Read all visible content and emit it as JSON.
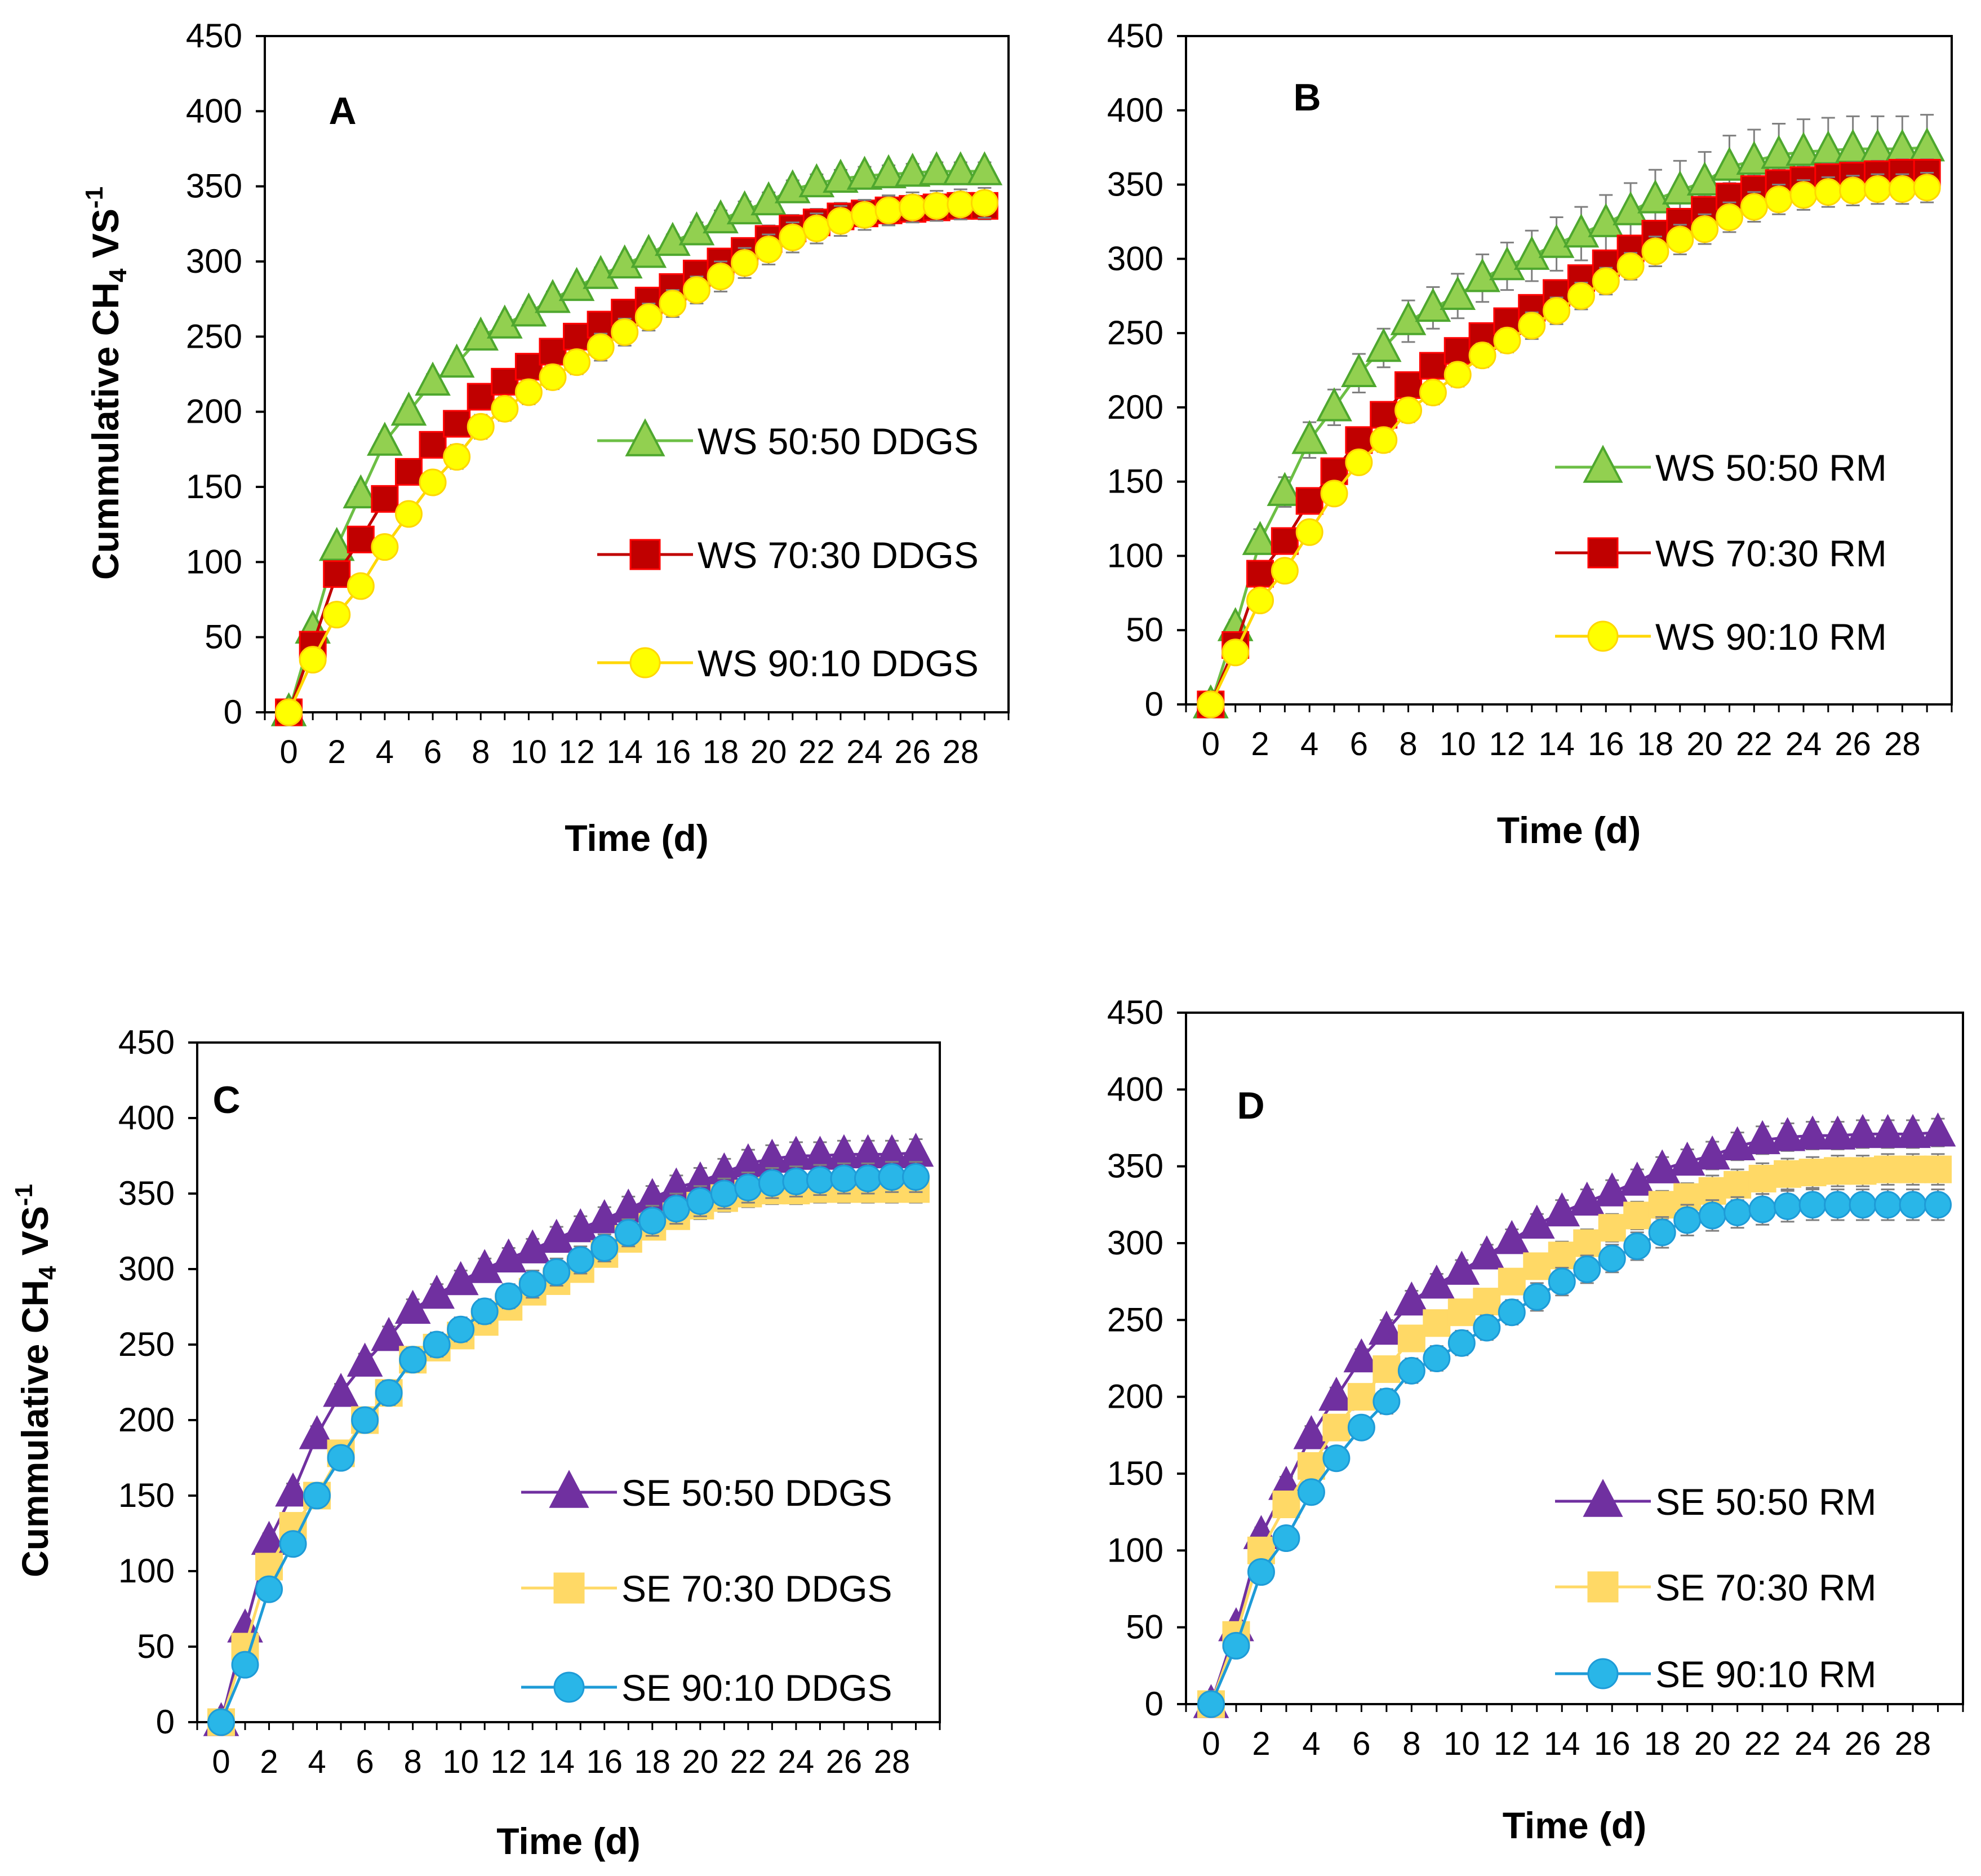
{
  "figure": {
    "x_axis_title": "Time (d)",
    "y_axis_title_prefix": "Cummulative CH",
    "y_axis_title_sub": "4",
    "y_axis_title_mid": " VS",
    "y_axis_title_sup": "-1"
  },
  "chart_data": [
    {
      "type": "line",
      "panel": "A",
      "xlabel": "Time (d)",
      "ylabel": "Cummulative CH4 VS-1",
      "ylim": [
        0,
        450
      ],
      "xlim": [
        -1,
        30
      ],
      "yticks": [
        0,
        50,
        100,
        150,
        200,
        250,
        300,
        350,
        400,
        450
      ],
      "xticks": [
        0,
        2,
        4,
        6,
        8,
        10,
        12,
        14,
        16,
        18,
        20,
        22,
        24,
        26,
        28
      ],
      "grid": false,
      "legend_position": "center-right",
      "x": [
        0,
        1,
        2,
        3,
        4,
        5,
        6,
        7,
        8,
        9,
        10,
        11,
        12,
        13,
        14,
        15,
        16,
        17,
        18,
        19,
        20,
        21,
        22,
        23,
        24,
        25,
        26,
        27,
        28,
        29
      ],
      "series": [
        {
          "name": "WS 50:50 DDGS",
          "marker": "triangle",
          "color": "#92d050",
          "edge": "#4ea72e",
          "line": "#6cbf45",
          "values": [
            0,
            55,
            110,
            145,
            180,
            200,
            220,
            232,
            250,
            258,
            266,
            275,
            283,
            291,
            298,
            305,
            313,
            320,
            328,
            334,
            340,
            348,
            352,
            355,
            357,
            358,
            359,
            360,
            360,
            360
          ],
          "errors": [
            0,
            4,
            4,
            5,
            5,
            5,
            5,
            5,
            5,
            5,
            5,
            5,
            5,
            5,
            5,
            5,
            5,
            6,
            6,
            6,
            6,
            6,
            6,
            6,
            6,
            6,
            6,
            6,
            6,
            6
          ]
        },
        {
          "name": "WS 70:30 DDGS",
          "marker": "square",
          "color": "#c00000",
          "edge": "#ff0000",
          "line": "#c00000",
          "values": [
            0,
            45,
            92,
            115,
            142,
            160,
            178,
            192,
            210,
            220,
            230,
            240,
            250,
            258,
            266,
            274,
            283,
            292,
            300,
            307,
            315,
            322,
            326,
            330,
            332,
            334,
            335,
            336,
            337,
            337
          ],
          "errors": [
            0,
            4,
            5,
            6,
            6,
            6,
            6,
            7,
            7,
            7,
            7,
            7,
            7,
            7,
            8,
            8,
            8,
            8,
            8,
            8,
            9,
            9,
            9,
            9,
            9,
            9,
            9,
            9,
            9,
            9
          ]
        },
        {
          "name": "WS 90:10 DDGS",
          "marker": "circle",
          "color": "#ffff00",
          "edge": "#ffd700",
          "line": "#ffd700",
          "values": [
            0,
            35,
            65,
            84,
            110,
            132,
            153,
            170,
            190,
            202,
            213,
            223,
            233,
            243,
            253,
            263,
            272,
            281,
            290,
            299,
            308,
            316,
            322,
            327,
            331,
            334,
            336,
            337,
            338,
            339
          ],
          "errors": [
            0,
            4,
            5,
            6,
            7,
            7,
            7,
            8,
            8,
            8,
            8,
            8,
            8,
            9,
            9,
            9,
            9,
            9,
            10,
            10,
            10,
            10,
            10,
            10,
            10,
            10,
            10,
            10,
            10,
            10
          ]
        }
      ]
    },
    {
      "type": "line",
      "panel": "B",
      "xlabel": "Time (d)",
      "ylabel": "",
      "ylim": [
        0,
        450
      ],
      "xlim": [
        -1,
        30
      ],
      "yticks": [
        0,
        50,
        100,
        150,
        200,
        250,
        300,
        350,
        400,
        450
      ],
      "xticks": [
        0,
        2,
        4,
        6,
        8,
        10,
        12,
        14,
        16,
        18,
        20,
        22,
        24,
        26,
        28
      ],
      "grid": false,
      "legend_position": "lower-right",
      "x": [
        0,
        1,
        2,
        3,
        4,
        5,
        6,
        7,
        8,
        9,
        10,
        11,
        12,
        13,
        14,
        15,
        16,
        17,
        18,
        19,
        20,
        21,
        22,
        23,
        24,
        25,
        26,
        27,
        28,
        29
      ],
      "series": [
        {
          "name": "WS 50:50 RM",
          "marker": "triangle",
          "color": "#92d050",
          "edge": "#4ea72e",
          "line": "#6cbf45",
          "values": [
            0,
            52,
            110,
            143,
            178,
            200,
            223,
            240,
            258,
            267,
            275,
            287,
            295,
            302,
            310,
            317,
            324,
            332,
            340,
            346,
            352,
            362,
            366,
            370,
            372,
            373,
            374,
            374,
            374,
            375
          ],
          "errors": [
            0,
            5,
            8,
            10,
            12,
            12,
            13,
            13,
            14,
            14,
            15,
            16,
            16,
            17,
            18,
            18,
            19,
            19,
            20,
            20,
            20,
            21,
            21,
            21,
            22,
            22,
            22,
            22,
            22,
            22
          ]
        },
        {
          "name": "WS 70:30 RM",
          "marker": "square",
          "color": "#c00000",
          "edge": "#ff0000",
          "line": "#c00000",
          "values": [
            0,
            40,
            88,
            110,
            137,
            157,
            178,
            195,
            215,
            228,
            238,
            248,
            258,
            267,
            277,
            287,
            297,
            307,
            317,
            325,
            333,
            342,
            347,
            351,
            353,
            355,
            356,
            357,
            358,
            358
          ],
          "errors": [
            0,
            4,
            5,
            6,
            6,
            6,
            6,
            7,
            7,
            7,
            7,
            7,
            7,
            7,
            8,
            8,
            8,
            8,
            8,
            8,
            9,
            9,
            9,
            9,
            9,
            9,
            9,
            9,
            9,
            9
          ]
        },
        {
          "name": "WS 90:10 RM",
          "marker": "circle",
          "color": "#ffff00",
          "edge": "#ffd700",
          "line": "#ffd700",
          "values": [
            0,
            35,
            70,
            90,
            116,
            142,
            163,
            178,
            198,
            210,
            222,
            235,
            245,
            255,
            265,
            275,
            285,
            295,
            305,
            313,
            320,
            328,
            335,
            340,
            343,
            345,
            346,
            347,
            347,
            348
          ],
          "errors": [
            0,
            4,
            5,
            6,
            7,
            7,
            7,
            8,
            8,
            8,
            8,
            8,
            8,
            9,
            9,
            9,
            9,
            9,
            10,
            10,
            10,
            10,
            10,
            10,
            10,
            10,
            10,
            10,
            10,
            10
          ]
        }
      ]
    },
    {
      "type": "line",
      "panel": "C",
      "xlabel": "Time (d)",
      "ylabel": "Cummulative CH4 VS-1",
      "ylim": [
        0,
        450
      ],
      "xlim": [
        -1,
        30
      ],
      "yticks": [
        0,
        50,
        100,
        150,
        200,
        250,
        300,
        350,
        400,
        450
      ],
      "xticks": [
        0,
        2,
        4,
        6,
        8,
        10,
        12,
        14,
        16,
        18,
        20,
        22,
        24,
        26,
        28
      ],
      "grid": false,
      "legend_position": "lower-right",
      "x": [
        0,
        1,
        2,
        3,
        4,
        5,
        6,
        7,
        8,
        9,
        10,
        11,
        12,
        13,
        14,
        15,
        16,
        17,
        18,
        19,
        20,
        21,
        22,
        23,
        24,
        25,
        26,
        27,
        28,
        29
      ],
      "series": [
        {
          "name": "SE 50:50 DDGS",
          "marker": "triangle",
          "color": "#7030a0",
          "edge": "#7030a0",
          "line": "#7030a0",
          "values": [
            0,
            62,
            120,
            152,
            190,
            218,
            238,
            255,
            273,
            283,
            292,
            300,
            307,
            313,
            320,
            327,
            333,
            340,
            347,
            354,
            358,
            364,
            370,
            373,
            375,
            375,
            376,
            376,
            376,
            377
          ],
          "errors": [
            0,
            4,
            5,
            6,
            6,
            6,
            6,
            7,
            7,
            7,
            7,
            7,
            7,
            7,
            8,
            8,
            8,
            8,
            8,
            8,
            9,
            9,
            9,
            9,
            9,
            9,
            9,
            9,
            9,
            9
          ]
        },
        {
          "name": "SE 70:30 DDGS",
          "marker": "square",
          "color": "#ffd966",
          "edge": "#ffd966",
          "line": "#ffd966",
          "values": [
            0,
            50,
            103,
            130,
            150,
            178,
            200,
            218,
            240,
            248,
            256,
            265,
            275,
            285,
            292,
            300,
            310,
            320,
            328,
            335,
            342,
            347,
            350,
            352,
            352,
            353,
            353,
            353,
            353,
            353
          ],
          "errors": [
            0,
            4,
            5,
            6,
            6,
            6,
            6,
            7,
            7,
            7,
            7,
            7,
            7,
            7,
            8,
            8,
            8,
            8,
            8,
            8,
            9,
            9,
            9,
            9,
            9,
            9,
            9,
            9,
            9,
            9
          ]
        },
        {
          "name": "SE 90:10 DDGS",
          "marker": "circle",
          "color": "#29b6e8",
          "edge": "#1e9bd7",
          "line": "#1e9bd7",
          "values": [
            0,
            38,
            88,
            118,
            150,
            175,
            200,
            218,
            240,
            250,
            260,
            272,
            282,
            290,
            298,
            306,
            314,
            324,
            332,
            340,
            345,
            350,
            354,
            357,
            358,
            359,
            360,
            360,
            361,
            361
          ],
          "errors": [
            0,
            4,
            5,
            6,
            7,
            7,
            7,
            8,
            8,
            8,
            8,
            8,
            8,
            9,
            9,
            9,
            9,
            9,
            10,
            10,
            10,
            10,
            10,
            10,
            10,
            10,
            10,
            10,
            10,
            10
          ]
        }
      ]
    },
    {
      "type": "line",
      "panel": "D",
      "xlabel": "Time (d)",
      "ylabel": "",
      "ylim": [
        0,
        450
      ],
      "xlim": [
        -1,
        30
      ],
      "yticks": [
        0,
        50,
        100,
        150,
        200,
        250,
        300,
        350,
        400,
        450
      ],
      "xticks": [
        0,
        2,
        4,
        6,
        8,
        10,
        12,
        14,
        16,
        18,
        20,
        22,
        24,
        26,
        28
      ],
      "grid": false,
      "legend_position": "lower-right",
      "x": [
        0,
        1,
        2,
        3,
        4,
        5,
        6,
        7,
        8,
        9,
        10,
        11,
        12,
        13,
        14,
        15,
        16,
        17,
        18,
        19,
        20,
        21,
        22,
        23,
        24,
        25,
        26,
        27,
        28,
        29
      ],
      "series": [
        {
          "name": "SE 50:50 RM",
          "marker": "triangle",
          "color": "#7030a0",
          "edge": "#7030a0",
          "line": "#7030a0",
          "values": [
            0,
            50,
            110,
            142,
            175,
            200,
            225,
            243,
            262,
            273,
            282,
            292,
            302,
            312,
            320,
            327,
            333,
            340,
            348,
            353,
            357,
            363,
            367,
            369,
            370,
            370,
            371,
            371,
            371,
            372
          ],
          "errors": [
            0,
            4,
            5,
            6,
            6,
            6,
            6,
            7,
            7,
            7,
            7,
            7,
            7,
            7,
            8,
            8,
            8,
            8,
            8,
            8,
            9,
            9,
            9,
            9,
            9,
            9,
            9,
            9,
            9,
            9
          ]
        },
        {
          "name": "SE 70:30 RM",
          "marker": "square",
          "color": "#ffd966",
          "edge": "#ffd966",
          "line": "#ffd966",
          "values": [
            0,
            45,
            100,
            130,
            155,
            180,
            200,
            218,
            238,
            248,
            255,
            262,
            275,
            285,
            292,
            300,
            310,
            318,
            325,
            330,
            334,
            338,
            342,
            345,
            346,
            347,
            347,
            348,
            348,
            348
          ],
          "errors": [
            0,
            4,
            5,
            6,
            6,
            7,
            7,
            7,
            8,
            8,
            8,
            8,
            8,
            8,
            9,
            9,
            9,
            9,
            9,
            9,
            10,
            10,
            10,
            10,
            10,
            10,
            10,
            10,
            10,
            10
          ]
        },
        {
          "name": "SE 90:10 RM",
          "marker": "circle",
          "color": "#29b6e8",
          "edge": "#1e9bd7",
          "line": "#1e9bd7",
          "values": [
            0,
            38,
            86,
            108,
            138,
            160,
            180,
            197,
            217,
            225,
            235,
            245,
            255,
            265,
            275,
            283,
            290,
            298,
            307,
            315,
            318,
            320,
            322,
            324,
            325,
            325,
            325,
            325,
            325,
            325
          ],
          "errors": [
            0,
            4,
            5,
            6,
            7,
            7,
            7,
            8,
            8,
            8,
            8,
            8,
            8,
            9,
            9,
            9,
            9,
            9,
            10,
            10,
            10,
            10,
            10,
            10,
            10,
            10,
            10,
            10,
            10,
            10
          ]
        }
      ]
    }
  ]
}
